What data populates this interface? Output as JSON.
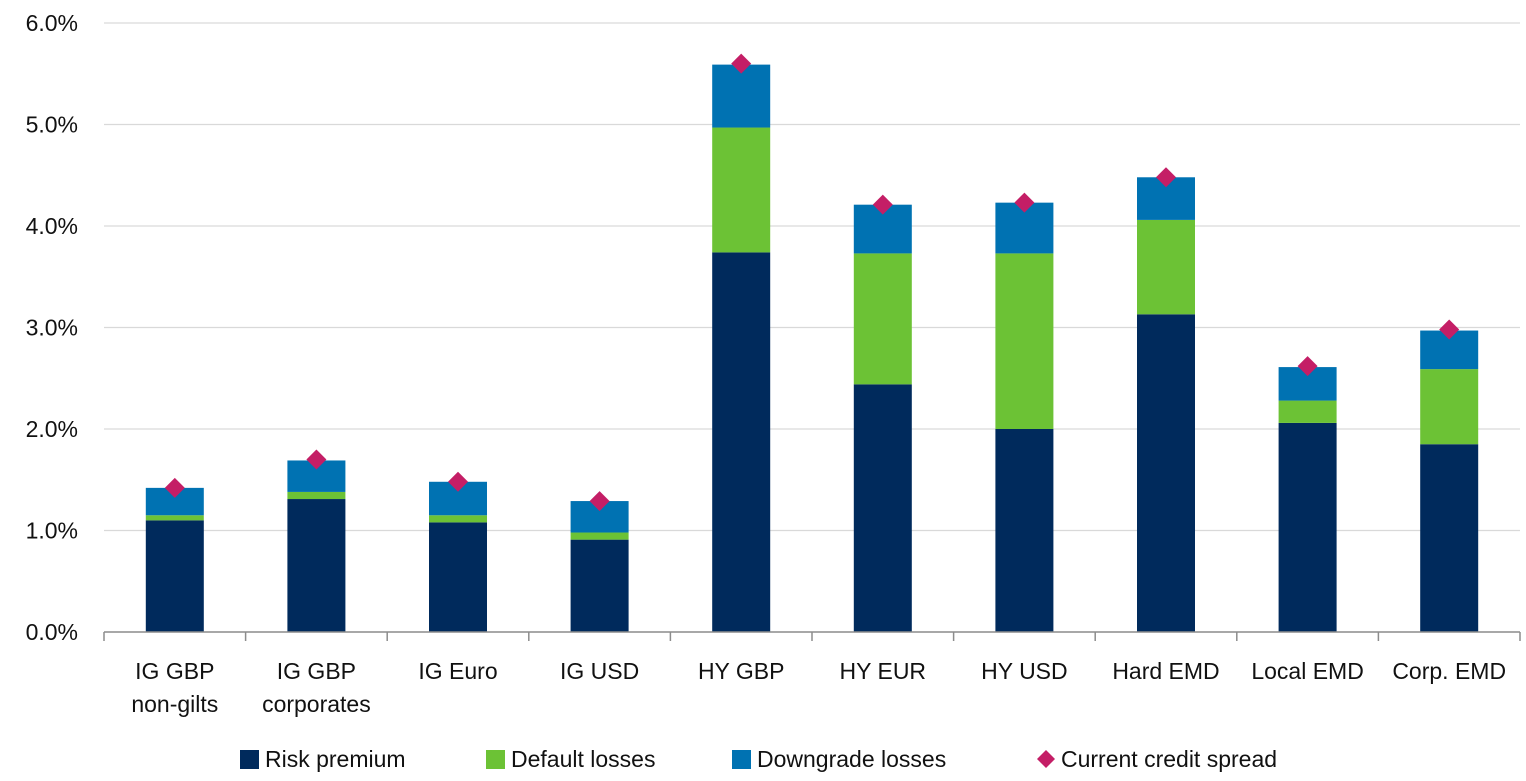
{
  "chart_data": {
    "type": "bar",
    "stacked": true,
    "title": "",
    "xlabel": "",
    "ylabel": "",
    "ylim": [
      0,
      6
    ],
    "y_ticks": [
      "0.0%",
      "1.0%",
      "2.0%",
      "3.0%",
      "4.0%",
      "5.0%",
      "6.0%"
    ],
    "grid": true,
    "legend_position": "bottom",
    "categories": [
      [
        "IG GBP",
        "non-gilts"
      ],
      [
        "IG GBP",
        "corporates"
      ],
      [
        "IG Euro"
      ],
      [
        "IG USD"
      ],
      [
        "HY GBP"
      ],
      [
        "HY EUR"
      ],
      [
        "HY USD"
      ],
      [
        "Hard EMD"
      ],
      [
        "Local EMD"
      ],
      [
        "Corp. EMD"
      ]
    ],
    "series": [
      {
        "name": "Risk premium",
        "kind": "bar",
        "color": "#002a5c",
        "values": [
          1.1,
          1.31,
          1.08,
          0.91,
          3.74,
          2.44,
          2.0,
          3.13,
          2.06,
          1.85
        ]
      },
      {
        "name": "Default losses",
        "kind": "bar",
        "color": "#6cc235",
        "values": [
          0.05,
          0.07,
          0.07,
          0.07,
          1.23,
          1.29,
          1.73,
          0.93,
          0.22,
          0.74
        ]
      },
      {
        "name": "Downgrade losses",
        "kind": "bar",
        "color": "#0072b2",
        "values": [
          0.27,
          0.31,
          0.33,
          0.31,
          0.62,
          0.48,
          0.5,
          0.42,
          0.33,
          0.38
        ]
      },
      {
        "name": "Current credit spread",
        "kind": "marker",
        "color": "#c41e66",
        "values": [
          1.42,
          1.7,
          1.48,
          1.29,
          5.6,
          4.21,
          4.23,
          4.48,
          2.62,
          2.98
        ]
      }
    ]
  }
}
